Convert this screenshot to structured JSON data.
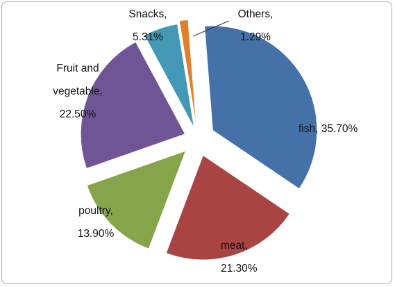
{
  "chart_data": {
    "type": "pie",
    "exploded": true,
    "title": "",
    "slices": [
      {
        "name": "fish",
        "value": 35.7,
        "label_lines": [
          "fish, 35.70%"
        ],
        "color": "#4472a8"
      },
      {
        "name": "meat",
        "value": 21.3,
        "label_lines": [
          "meat,",
          "21.30%"
        ],
        "color": "#a84442"
      },
      {
        "name": "poultry",
        "value": 13.9,
        "label_lines": [
          "poultry,",
          "13.90%"
        ],
        "color": "#86a44a"
      },
      {
        "name": "Fruit and vegetable",
        "value": 22.5,
        "label_lines": [
          "Fruit and",
          "vegetable,",
          "22.50%"
        ],
        "color": "#6f5596"
      },
      {
        "name": "Snacks",
        "value": 5.31,
        "label_lines": [
          "Snacks,",
          "5.31%"
        ],
        "color": "#4298b5"
      },
      {
        "name": "Others",
        "value": 1.29,
        "label_lines": [
          "Others,",
          "1.29%"
        ],
        "color": "#e0802c"
      }
    ]
  }
}
